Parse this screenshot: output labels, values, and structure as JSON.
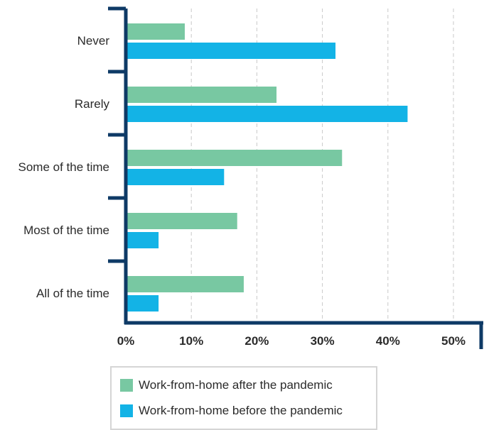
{
  "chart_data": {
    "type": "bar",
    "orientation": "horizontal",
    "categories": [
      "Never",
      "Rarely",
      "Some of the time",
      "Most of the time",
      "All of the time"
    ],
    "series": [
      {
        "name": "Work-from-home after the pandemic",
        "color": "#78c8a2",
        "values": [
          9,
          23,
          33,
          17,
          18
        ]
      },
      {
        "name": "Work-from-home before the pandemic",
        "color": "#13b3e6",
        "values": [
          32,
          43,
          15,
          5,
          5
        ]
      }
    ],
    "xlim": [
      0,
      50
    ],
    "xticks": [
      0,
      10,
      20,
      30,
      40,
      50
    ],
    "xtick_labels": [
      "0%",
      "10%",
      "20%",
      "30%",
      "40%",
      "50%"
    ],
    "title": "",
    "xlabel": "",
    "ylabel": "",
    "grid": "vertical dashed",
    "legend_position": "bottom",
    "axis_color": "#0e3a66"
  },
  "legend": {
    "items": [
      {
        "label": "Work-from-home after the pandemic",
        "color": "#78c8a2"
      },
      {
        "label": "Work-from-home before the pandemic",
        "color": "#13b3e6"
      }
    ]
  }
}
